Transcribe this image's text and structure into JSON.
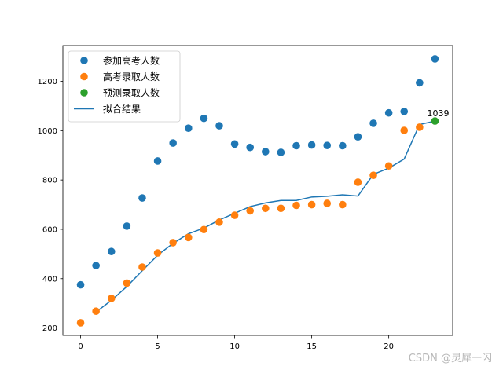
{
  "chart_data": {
    "type": "scatter",
    "title": "",
    "xlabel": "",
    "ylabel": "",
    "xlim": [
      -1.15,
      24.15
    ],
    "ylim": [
      170,
      1345
    ],
    "xticks": [
      0,
      5,
      10,
      15,
      20
    ],
    "yticks": [
      200,
      400,
      600,
      800,
      1000,
      1200
    ],
    "legend_position": "top-left",
    "series": [
      {
        "name": "参加高考人数",
        "kind": "scatter",
        "color": "#1f77b4",
        "x": [
          0,
          1,
          2,
          3,
          4,
          5,
          6,
          7,
          8,
          9,
          10,
          11,
          12,
          13,
          14,
          15,
          16,
          17,
          18,
          19,
          20,
          21,
          22,
          23
        ],
        "y": [
          375,
          453,
          510,
          613,
          727,
          877,
          950,
          1010,
          1050,
          1020,
          946,
          932,
          915,
          912,
          939,
          942,
          940,
          939,
          975,
          1030,
          1072,
          1078,
          1194,
          1291
        ]
      },
      {
        "name": "高考录取人数",
        "kind": "scatter",
        "color": "#ff7f0e",
        "x": [
          0,
          1,
          2,
          3,
          4,
          5,
          6,
          7,
          8,
          9,
          10,
          11,
          12,
          13,
          14,
          15,
          16,
          17,
          18,
          19,
          20,
          21,
          22
        ],
        "y": [
          221,
          268,
          320,
          382,
          447,
          504,
          546,
          567,
          599,
          629,
          657,
          675,
          685,
          685,
          697,
          700,
          705,
          700,
          791,
          819,
          857,
          1001,
          1014
        ]
      },
      {
        "name": "预测录取人数",
        "kind": "scatter",
        "color": "#2ca02c",
        "x": [
          23
        ],
        "y": [
          1039
        ]
      },
      {
        "name": "拟合结果",
        "kind": "line",
        "color": "#1f77b4",
        "x": [
          1,
          2,
          3,
          4,
          5,
          6,
          7,
          8,
          9,
          10,
          11,
          12,
          13,
          14,
          15,
          16,
          17,
          18,
          19,
          20,
          21,
          22,
          23
        ],
        "y": [
          265,
          312,
          368,
          432,
          495,
          543,
          582,
          605,
          638,
          665,
          692,
          707,
          717,
          717,
          731,
          734,
          740,
          735,
          823,
          848,
          885,
          1025,
          1039
        ]
      }
    ],
    "annotations": [
      {
        "x": 23,
        "y": 1039,
        "text": "1039"
      }
    ]
  },
  "watermark": "CSDN @灵犀一闪"
}
